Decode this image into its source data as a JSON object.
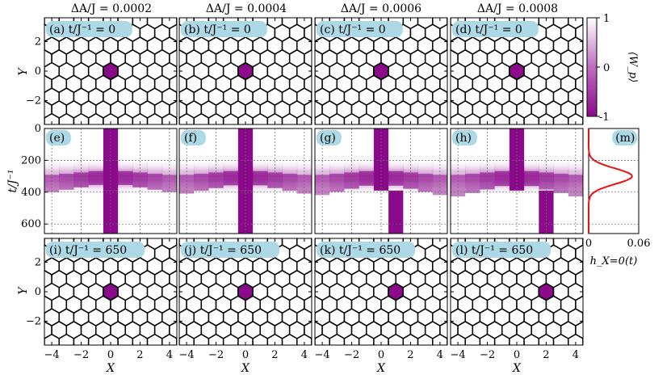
{
  "chart_data": {
    "type": "heatmap",
    "column_titles": [
      "ΔA/J = 0.0002",
      "ΔA/J = 0.0004",
      "ΔA/J = 0.0006",
      "ΔA/J = 0.0008"
    ],
    "top_row": {
      "panel_labels": [
        "(a) t/J⁻¹ = 0",
        "(b) t/J⁻¹ = 0",
        "(c) t/J⁻¹ = 0",
        "(d) t/J⁻¹ = 0"
      ],
      "ylabel": "Y",
      "yticks": [
        -2,
        0,
        2
      ],
      "excited_plaquette_x": [
        0,
        0,
        0,
        0
      ],
      "excited_plaquette_y": [
        0,
        0,
        0,
        0
      ]
    },
    "middle_row": {
      "panel_labels": [
        "(e)",
        "(f)",
        "(g)",
        "(h)"
      ],
      "ylabel": "t/J⁻¹",
      "yticks": [
        0,
        200,
        400,
        600
      ],
      "ylim": [
        660,
        0
      ],
      "xlim": [
        -4.5,
        4.5
      ],
      "pulse_center_time": 300,
      "pulse_half_width": 130,
      "final_plaquette_x": [
        0,
        0,
        1,
        2
      ]
    },
    "bottom_row": {
      "panel_labels": [
        "(i) t/J⁻¹ = 650",
        "(j) t/J⁻¹ = 650",
        "(k) t/J⁻¹ = 650",
        "(l) t/J⁻¹ = 650"
      ],
      "ylabel": "Y",
      "yticks": [
        -2,
        0,
        2
      ],
      "xlabel": "X",
      "xticks": [
        -4,
        -2,
        0,
        2,
        4
      ],
      "excited_plaquette_x": [
        0,
        0,
        1,
        2
      ],
      "excited_plaquette_y": [
        0,
        0,
        0,
        0
      ]
    },
    "colorbar": {
      "label": "⟨W_p⟩",
      "ticks": [
        1,
        0,
        -1
      ],
      "colors": [
        "#ffffff",
        "#8b0a8b"
      ]
    },
    "side_panel": {
      "label": "(m)",
      "xlabel": "h_X=0(t)",
      "xticks": [
        "0",
        "0.06"
      ],
      "xlim": [
        0,
        0.06
      ],
      "peak_time": 300,
      "peak_value": 0.052,
      "line_color": "#ee1111"
    }
  }
}
